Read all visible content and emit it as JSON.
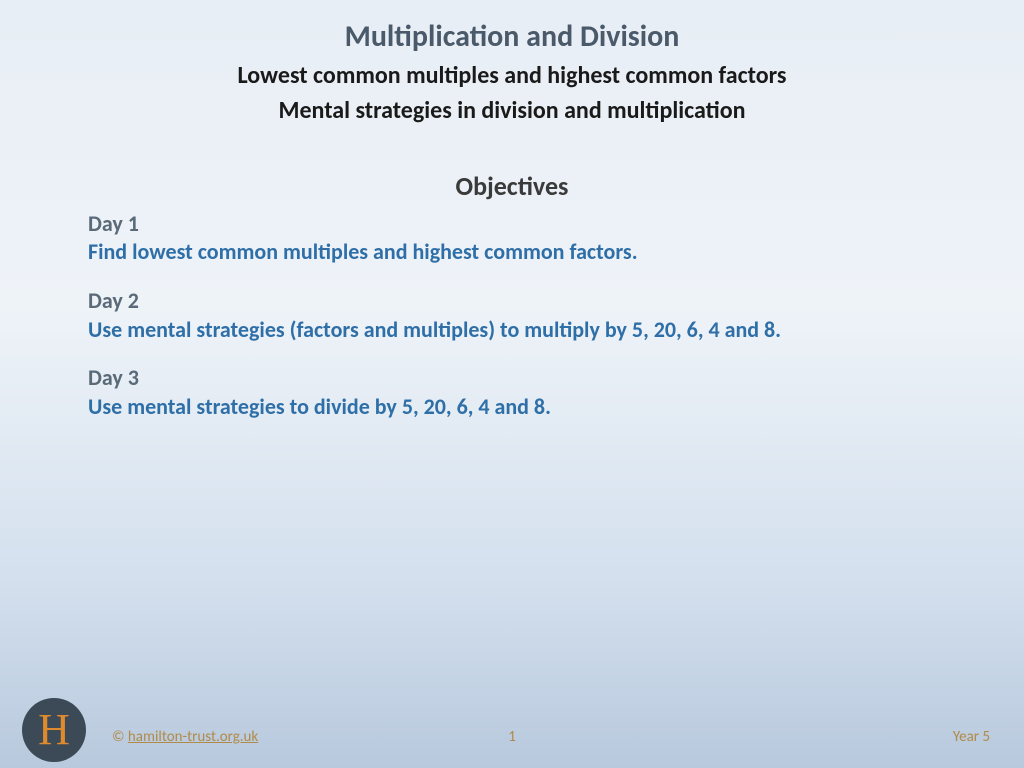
{
  "title": {
    "main": "Multiplication and Division",
    "sub1": "Lowest common multiples and highest common factors",
    "sub2": "Mental strategies in division and multiplication"
  },
  "objectives": {
    "heading": "Objectives",
    "days": [
      {
        "label": "Day 1",
        "text": "Find lowest common multiples and highest common factors."
      },
      {
        "label": "Day 2",
        "text": "Use mental strategies (factors and multiples) to multiply by 5, 20, 6, 4 and 8."
      },
      {
        "label": "Day 3",
        "text": "Use mental strategies to divide by 5, 20, 6, 4 and 8."
      }
    ]
  },
  "footer": {
    "logo_letter": "H",
    "copyright_prefix": "© ",
    "copyright_link": "hamilton-trust.org.uk",
    "page": "1",
    "year": "Year 5"
  },
  "colors": {
    "title_main": "#4a5a6a",
    "title_sub": "#1a1a1a",
    "day_label": "#5a6a78",
    "day_text": "#2f6fa8",
    "footer_text": "#b08a4a",
    "logo_bg": "#3b4a56",
    "logo_fg": "#e08a2e"
  }
}
